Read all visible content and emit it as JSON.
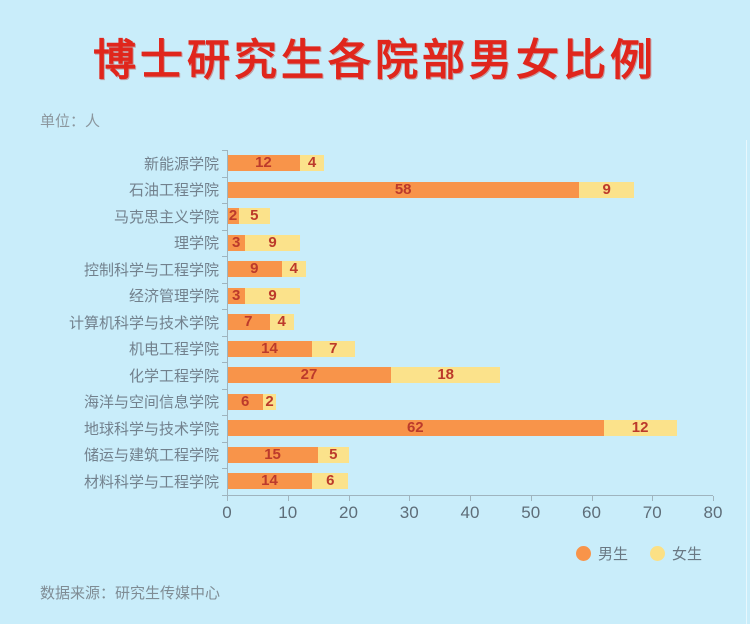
{
  "title": "博士研究生各院部男女比例",
  "unit_label": "单位：人",
  "source_label": "数据来源：研究生传媒中心",
  "legend": {
    "items": [
      {
        "label": "男生",
        "color": "#F8944A"
      },
      {
        "label": "女生",
        "color": "#FBE085"
      }
    ]
  },
  "colors": {
    "background": "#C9EDFA",
    "title": "#E0261C",
    "male_bar": "#F8944A",
    "female_bar": "#FBE28B",
    "value_text": "#BC3A2B",
    "axis": "#9FB4BE",
    "category_text": "#72818D"
  },
  "chart_data": {
    "type": "bar",
    "orientation": "horizontal",
    "stacked": true,
    "title": "博士研究生各院部男女比例",
    "unit": "人",
    "categories": [
      "新能源学院",
      "石油工程学院",
      "马克思主义学院",
      "理学院",
      "控制科学与工程学院",
      "经济管理学院",
      "计算机科学与技术学院",
      "机电工程学院",
      "化学工程学院",
      "海洋与空间信息学院",
      "地球科学与技术学院",
      "储运与建筑工程学院",
      "材料科学与工程学院"
    ],
    "series": [
      {
        "name": "男生",
        "color": "#F8944A",
        "values": [
          12,
          58,
          2,
          3,
          9,
          3,
          7,
          14,
          27,
          6,
          62,
          15,
          14
        ]
      },
      {
        "name": "女生",
        "color": "#FBE28B",
        "values": [
          4,
          9,
          5,
          9,
          4,
          9,
          4,
          7,
          18,
          2,
          12,
          5,
          6
        ]
      }
    ],
    "xlim": [
      0,
      80
    ],
    "xticks": [
      0,
      10,
      20,
      30,
      40,
      50,
      60,
      70,
      80
    ],
    "grid": false,
    "legend_position": "bottom-right",
    "value_labels": "inside-center"
  }
}
